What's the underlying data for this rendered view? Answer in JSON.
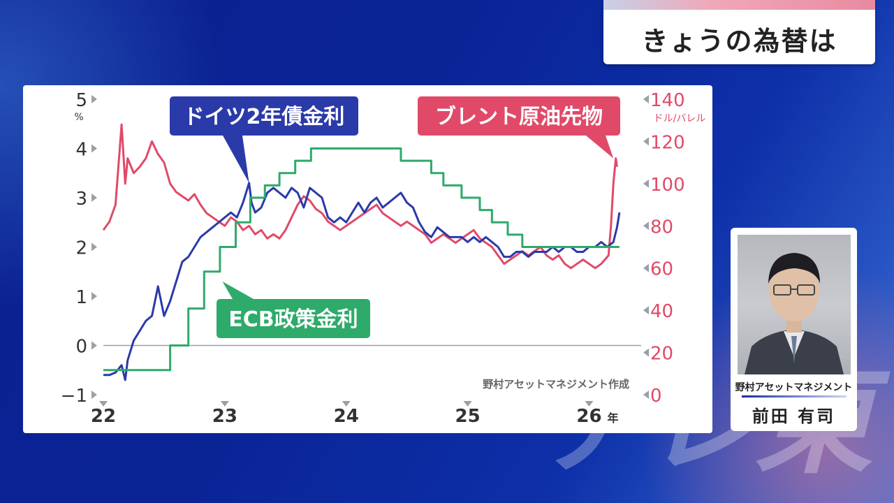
{
  "header": {
    "title": "きょうの為替は"
  },
  "chart_data": {
    "type": "line",
    "left_axis": {
      "ticks": [
        "5",
        "4",
        "3",
        "2",
        "1",
        "0",
        "−1"
      ],
      "values": [
        5,
        4,
        3,
        2,
        1,
        0,
        -1
      ],
      "unit": "%",
      "range": [
        -1,
        5
      ]
    },
    "right_axis": {
      "ticks": [
        "140",
        "120",
        "100",
        "80",
        "60",
        "40",
        "20",
        "0"
      ],
      "values": [
        140,
        120,
        100,
        80,
        60,
        40,
        20,
        0
      ],
      "unit": "ドル/バレル",
      "range": [
        0,
        140
      ]
    },
    "x_axis": {
      "ticks": [
        "22",
        "23",
        "24",
        "25",
        "26"
      ],
      "values": [
        2022,
        2023,
        2024,
        2025,
        2026
      ],
      "unit": "年",
      "range": [
        2022,
        2026.4
      ]
    },
    "source": "野村アセットマネジメント作成",
    "colors": {
      "blue": "#2a3aa8",
      "red": "#e04a68",
      "green": "#2eaa6a"
    },
    "series": [
      {
        "name": "ドイツ2年債金利",
        "axis": "left",
        "color": "#2a3aa8",
        "x": [
          2022.0,
          2022.05,
          2022.1,
          2022.15,
          2022.18,
          2022.2,
          2022.25,
          2022.3,
          2022.35,
          2022.4,
          2022.45,
          2022.5,
          2022.55,
          2022.6,
          2022.65,
          2022.7,
          2022.75,
          2022.8,
          2022.85,
          2022.9,
          2022.95,
          2023.0,
          2023.05,
          2023.1,
          2023.15,
          2023.2,
          2023.22,
          2023.25,
          2023.3,
          2023.35,
          2023.4,
          2023.45,
          2023.5,
          2023.55,
          2023.6,
          2023.65,
          2023.7,
          2023.75,
          2023.8,
          2023.85,
          2023.9,
          2023.95,
          2024.0,
          2024.05,
          2024.1,
          2024.15,
          2024.2,
          2024.25,
          2024.3,
          2024.35,
          2024.4,
          2024.45,
          2024.5,
          2024.55,
          2024.6,
          2024.65,
          2024.7,
          2024.75,
          2024.8,
          2024.85,
          2024.9,
          2024.95,
          2025.0,
          2025.05,
          2025.1,
          2025.15,
          2025.2,
          2025.25,
          2025.3,
          2025.35,
          2025.4,
          2025.45,
          2025.5,
          2025.55,
          2025.6,
          2025.65,
          2025.7,
          2025.75,
          2025.8,
          2025.85,
          2025.9,
          2025.95,
          2026.0,
          2026.05,
          2026.1,
          2026.15,
          2026.2,
          2026.23,
          2026.25
        ],
        "y": [
          -0.6,
          -0.6,
          -0.55,
          -0.4,
          -0.7,
          -0.3,
          0.1,
          0.3,
          0.5,
          0.6,
          1.2,
          0.6,
          0.9,
          1.3,
          1.7,
          1.8,
          2.0,
          2.2,
          2.3,
          2.4,
          2.5,
          2.6,
          2.7,
          2.6,
          2.9,
          3.3,
          2.9,
          2.7,
          2.8,
          3.1,
          3.2,
          3.1,
          3.0,
          3.2,
          3.1,
          2.8,
          3.2,
          3.1,
          3.0,
          2.6,
          2.5,
          2.6,
          2.5,
          2.7,
          2.9,
          2.7,
          2.9,
          3.0,
          2.8,
          2.9,
          3.0,
          3.1,
          2.9,
          2.8,
          2.5,
          2.3,
          2.2,
          2.4,
          2.3,
          2.2,
          2.2,
          2.2,
          2.1,
          2.2,
          2.1,
          2.2,
          2.1,
          2.0,
          1.8,
          1.8,
          1.9,
          1.9,
          1.8,
          1.9,
          1.9,
          1.9,
          2.0,
          1.9,
          2.0,
          2.0,
          1.9,
          1.9,
          2.0,
          2.0,
          2.1,
          2.0,
          2.1,
          2.4,
          2.7
        ]
      },
      {
        "name": "ブレント原油先物",
        "axis": "right",
        "color": "#e04a68",
        "x": [
          2022.0,
          2022.05,
          2022.1,
          2022.15,
          2022.18,
          2022.2,
          2022.25,
          2022.3,
          2022.35,
          2022.4,
          2022.45,
          2022.5,
          2022.55,
          2022.6,
          2022.65,
          2022.7,
          2022.75,
          2022.8,
          2022.85,
          2022.9,
          2022.95,
          2023.0,
          2023.05,
          2023.1,
          2023.15,
          2023.2,
          2023.25,
          2023.3,
          2023.35,
          2023.4,
          2023.45,
          2023.5,
          2023.55,
          2023.6,
          2023.65,
          2023.7,
          2023.75,
          2023.8,
          2023.85,
          2023.9,
          2023.95,
          2024.0,
          2024.05,
          2024.1,
          2024.15,
          2024.2,
          2024.25,
          2024.3,
          2024.35,
          2024.4,
          2024.45,
          2024.5,
          2024.55,
          2024.6,
          2024.65,
          2024.7,
          2024.75,
          2024.8,
          2024.85,
          2024.9,
          2024.95,
          2025.0,
          2025.05,
          2025.1,
          2025.15,
          2025.2,
          2025.25,
          2025.3,
          2025.35,
          2025.4,
          2025.45,
          2025.5,
          2025.55,
          2025.6,
          2025.65,
          2025.7,
          2025.75,
          2025.8,
          2025.85,
          2025.9,
          2025.95,
          2026.0,
          2026.05,
          2026.1,
          2026.13,
          2026.16,
          2026.18,
          2026.2,
          2026.22,
          2026.23
        ],
        "y": [
          78,
          82,
          90,
          128,
          100,
          112,
          105,
          108,
          112,
          120,
          114,
          110,
          100,
          96,
          94,
          92,
          95,
          90,
          86,
          84,
          82,
          80,
          84,
          82,
          78,
          80,
          76,
          78,
          74,
          76,
          74,
          78,
          84,
          90,
          94,
          92,
          88,
          86,
          82,
          80,
          78,
          80,
          82,
          84,
          86,
          88,
          90,
          86,
          84,
          82,
          80,
          82,
          80,
          78,
          76,
          72,
          74,
          76,
          74,
          72,
          74,
          76,
          78,
          74,
          72,
          70,
          66,
          62,
          64,
          66,
          68,
          66,
          68,
          70,
          66,
          64,
          66,
          62,
          60,
          62,
          64,
          62,
          60,
          62,
          64,
          66,
          80,
          100,
          112,
          108
        ]
      },
      {
        "name": "ECB政策金利",
        "axis": "left",
        "color": "#2eaa6a",
        "step": true,
        "x": [
          2022.0,
          2022.55,
          2022.7,
          2022.83,
          2022.96,
          2023.09,
          2023.21,
          2023.33,
          2023.45,
          2023.58,
          2023.71,
          2024.45,
          2024.7,
          2024.8,
          2024.95,
          2025.1,
          2025.2,
          2025.33,
          2025.45,
          2026.25
        ],
        "y": [
          -0.5,
          0.0,
          0.75,
          1.5,
          2.0,
          2.5,
          3.0,
          3.25,
          3.5,
          3.75,
          4.0,
          3.75,
          3.5,
          3.25,
          3.0,
          2.75,
          2.5,
          2.25,
          2.0,
          2.0
        ]
      }
    ]
  }
}
